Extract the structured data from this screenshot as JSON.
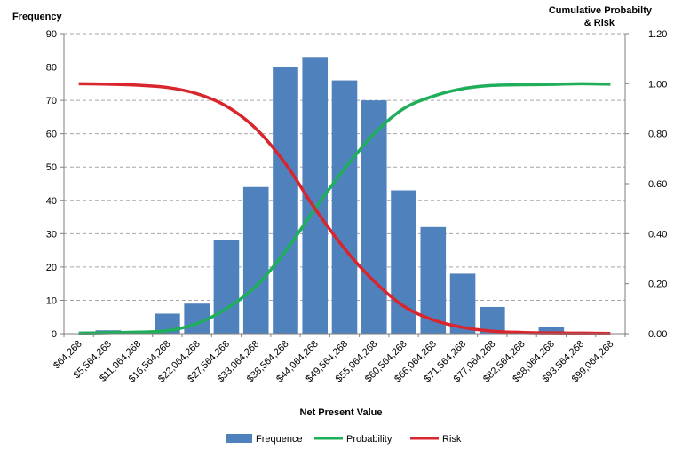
{
  "chart_data": {
    "type": "bar",
    "title": "",
    "xlabel": "Net Present Value",
    "ylabel_left": "Frequency",
    "ylabel_right_lines": [
      "Cumulative Probabilty",
      "& Risk"
    ],
    "ylim_left": [
      0,
      90
    ],
    "yticks_left": [
      "0",
      "10",
      "20",
      "30",
      "40",
      "50",
      "60",
      "70",
      "80",
      "90"
    ],
    "ylim_right": [
      0,
      1.2
    ],
    "yticks_right": [
      "0.00",
      "0.20",
      "0.40",
      "0.60",
      "0.80",
      "1.00",
      "1.20"
    ],
    "grid": true,
    "legend_position": "bottom",
    "categories": [
      "$64,268",
      "$5,564,268",
      "$11,064,268",
      "$16,564,268",
      "$22,064,268",
      "$27,564,268",
      "$33,064,268",
      "$38,564,268",
      "$44,064,268",
      "$49,564,268",
      "$55,064,268",
      "$60,564,268",
      "$66,064,268",
      "$71,564,268",
      "$77,064,268",
      "$82,564,268",
      "$88,064,268",
      "$93,564,268",
      "$99,064,268"
    ],
    "series": [
      {
        "name": "Frequence",
        "type": "bar",
        "axis": "left",
        "color": "#4f81bd",
        "values": [
          0,
          1,
          0,
          6,
          9,
          28,
          44,
          80,
          83,
          76,
          70,
          43,
          32,
          18,
          8,
          0,
          2,
          0,
          0
        ]
      },
      {
        "name": "Probability",
        "type": "line",
        "axis": "right",
        "color": "#1fae5a",
        "values": [
          0.002,
          0.004,
          0.006,
          0.012,
          0.04,
          0.1,
          0.19,
          0.33,
          0.5,
          0.66,
          0.8,
          0.9,
          0.95,
          0.98,
          0.993,
          0.996,
          0.997,
          1.0,
          0.998
        ]
      },
      {
        "name": "Risk",
        "type": "line",
        "axis": "right",
        "color": "#d9252e",
        "values": [
          1.0,
          0.998,
          0.994,
          0.985,
          0.96,
          0.91,
          0.82,
          0.68,
          0.5,
          0.34,
          0.21,
          0.11,
          0.055,
          0.025,
          0.01,
          0.005,
          0.003,
          0.002,
          0.001
        ]
      }
    ]
  }
}
